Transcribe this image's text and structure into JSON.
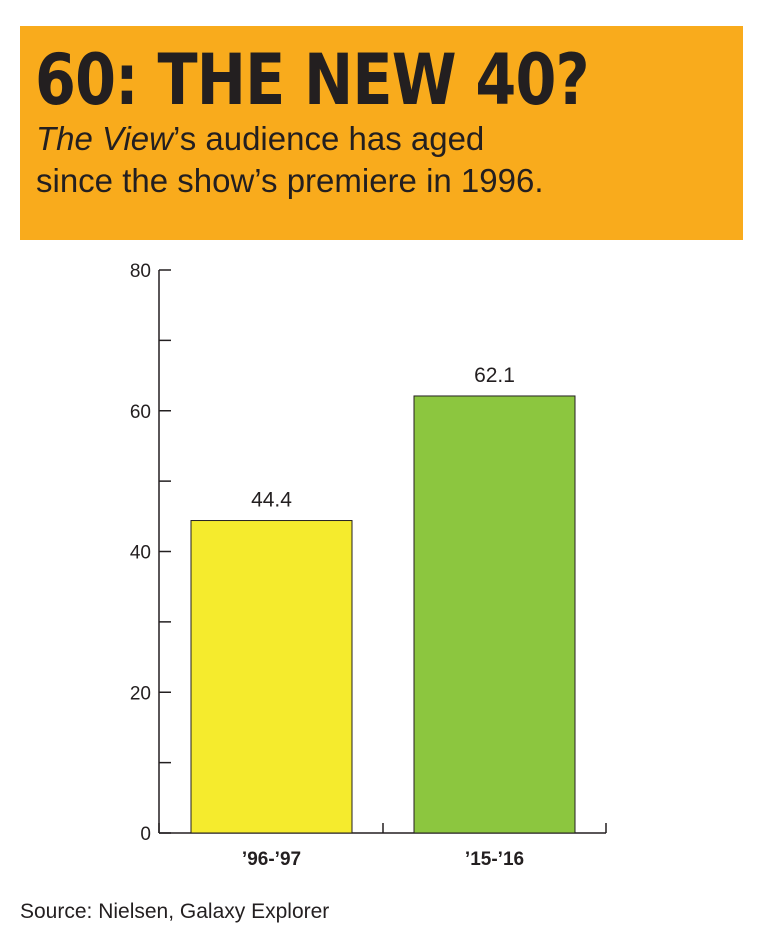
{
  "header": {
    "headline": "60: THE NEW 40?",
    "subtitle_italic": "The View",
    "subtitle_line1_rest": "’s audience has aged",
    "subtitle_line2": "since the show’s premiere in 1996."
  },
  "colors": {
    "banner": "#f9ab1c",
    "bar_1": "#f5eb2d",
    "bar_2": "#8cc63f",
    "axis": "#231f20"
  },
  "chart_data": {
    "type": "bar",
    "categories": [
      "’96-’97",
      "’15-’16"
    ],
    "values": [
      44.4,
      62.1
    ],
    "value_labels": [
      "44.4",
      "62.1"
    ],
    "ylim": [
      0,
      80
    ],
    "yticks_labeled": [
      0,
      20,
      40,
      60,
      80
    ],
    "yticks_minor": [
      10,
      30,
      50,
      70
    ],
    "grid": false,
    "legend": "none"
  },
  "footer": {
    "source": "Source: Nielsen, Galaxy Explorer"
  }
}
